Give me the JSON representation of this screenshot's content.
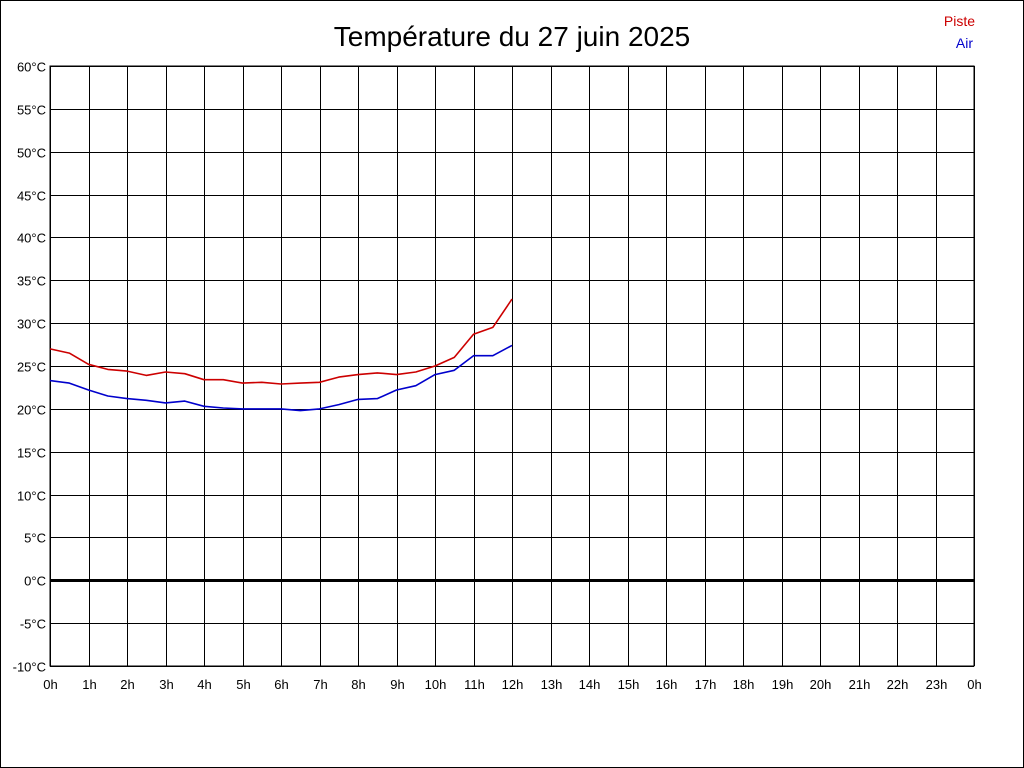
{
  "chart_data": {
    "type": "line",
    "title": "Température du 27 juin 2025",
    "xlabel": "",
    "ylabel": "",
    "ylim": [
      -10,
      60
    ],
    "xlim": [
      0,
      24
    ],
    "grid": true,
    "legend": "top-right",
    "y_ticks": [
      "60°C",
      "55°C",
      "50°C",
      "45°C",
      "40°C",
      "35°C",
      "30°C",
      "25°C",
      "20°C",
      "15°C",
      "10°C",
      "5°C",
      "0°C",
      "-5°C",
      "-10°C"
    ],
    "y_tick_values": [
      60,
      55,
      50,
      45,
      40,
      35,
      30,
      25,
      20,
      15,
      10,
      5,
      0,
      -5,
      -10
    ],
    "x_ticks": [
      "0h",
      "1h",
      "2h",
      "3h",
      "4h",
      "5h",
      "6h",
      "7h",
      "8h",
      "9h",
      "10h",
      "11h",
      "12h",
      "13h",
      "14h",
      "15h",
      "16h",
      "17h",
      "18h",
      "19h",
      "20h",
      "21h",
      "22h",
      "23h",
      "0h"
    ],
    "x_tick_values": [
      0,
      1,
      2,
      3,
      4,
      5,
      6,
      7,
      8,
      9,
      10,
      11,
      12,
      13,
      14,
      15,
      16,
      17,
      18,
      19,
      20,
      21,
      22,
      23,
      24
    ],
    "series": [
      {
        "name": "Piste",
        "color": "#cc0000",
        "x": [
          0,
          0.5,
          1,
          1.5,
          2,
          2.5,
          3,
          3.5,
          4,
          4.5,
          5,
          5.5,
          6,
          6.5,
          7,
          7.5,
          8,
          8.5,
          9,
          9.5,
          10,
          10.5,
          11,
          11.5,
          12
        ],
        "y": [
          27.0,
          26.5,
          25.2,
          24.6,
          24.4,
          23.9,
          24.3,
          24.1,
          23.4,
          23.4,
          23.0,
          23.1,
          22.9,
          23.0,
          23.1,
          23.7,
          24.0,
          24.2,
          24.0,
          24.3,
          25.0,
          26.0,
          28.7,
          29.5,
          32.8
        ]
      },
      {
        "name": "Air",
        "color": "#0000cc",
        "x": [
          0,
          0.5,
          1,
          1.5,
          2,
          2.5,
          3,
          3.5,
          4,
          4.5,
          5,
          5.5,
          6,
          6.5,
          7,
          7.5,
          8,
          8.5,
          9,
          9.5,
          10,
          10.5,
          11,
          11.5,
          12
        ],
        "y": [
          23.3,
          23.0,
          22.2,
          21.5,
          21.2,
          21.0,
          20.7,
          20.9,
          20.3,
          20.1,
          20.0,
          20.0,
          20.0,
          19.8,
          20.0,
          20.5,
          21.1,
          21.2,
          22.2,
          22.7,
          24.0,
          24.5,
          26.2,
          26.2,
          27.4
        ]
      }
    ]
  }
}
